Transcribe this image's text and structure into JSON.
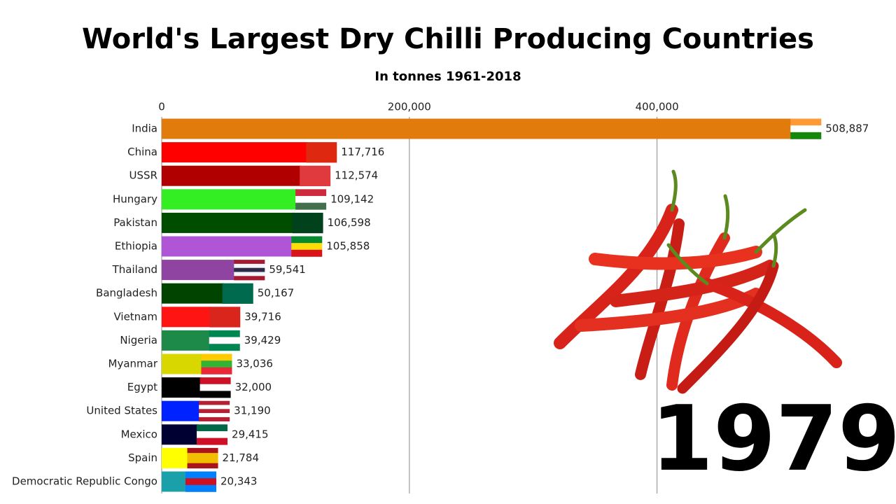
{
  "chart_data": {
    "type": "bar",
    "orientation": "horizontal",
    "title": "World's Largest Dry Chilli Producing Countries",
    "subtitle": "In tonnes 1961-2018",
    "year": "1979",
    "categories": [
      "India",
      "China",
      "USSR",
      "Hungary",
      "Pakistan",
      "Ethiopia",
      "Thailand",
      "Bangladesh",
      "Vietnam",
      "Nigeria",
      "Myanmar",
      "Egypt",
      "United States",
      "Mexico",
      "Spain",
      "Democratic Republic Congo"
    ],
    "values": [
      508887,
      117716,
      112574,
      109142,
      106598,
      105858,
      59541,
      50167,
      39716,
      39429,
      33036,
      32000,
      31190,
      29415,
      21784,
      20343
    ],
    "value_labels": [
      "508,887",
      "117,716",
      "112,574",
      "109,142",
      "106,598",
      "105,858",
      "59,541",
      "50,167",
      "39,716",
      "39,429",
      "33,036",
      "32,000",
      "31,190",
      "29,415",
      "21,784",
      "20,343"
    ],
    "colors": [
      "#e07b0c",
      "#ff0000",
      "#b00000",
      "#33ee22",
      "#004d00",
      "#b055d5",
      "#8e44a0",
      "#004400",
      "#ff1414",
      "#1e8a4a",
      "#d8d800",
      "#000000",
      "#0022ff",
      "#000033",
      "#ffff00",
      "#1aa0a8"
    ],
    "flags": [
      [
        "#ff9933",
        "#ffffff",
        "#138808"
      ],
      [
        "#de2910"
      ],
      [
        "#e03a3e"
      ],
      [
        "#cd2a3e",
        "#ffffff",
        "#436f4d"
      ],
      [
        "#01411c"
      ],
      [
        "#078930",
        "#fcdd09",
        "#da121a"
      ],
      [
        "#a51931",
        "#f4f5f8",
        "#2d2a4a",
        "#f4f5f8",
        "#a51931"
      ],
      [
        "#006a4e"
      ],
      [
        "#da251d"
      ],
      [
        "#008751",
        "#ffffff",
        "#008751"
      ],
      [
        "#fecb00",
        "#34b233",
        "#ea2839"
      ],
      [
        "#ce1126",
        "#ffffff",
        "#000000"
      ],
      [
        "#b22234",
        "#ffffff",
        "#b22234",
        "#ffffff",
        "#b22234"
      ],
      [
        "#006847",
        "#ffffff",
        "#ce1126"
      ],
      [
        "#aa151b",
        "#f1bf00",
        "#f1bf00",
        "#aa151b"
      ],
      [
        "#007fff",
        "#ce1021",
        "#007fff"
      ]
    ],
    "xlim": [
      0,
      550000
    ],
    "xticks": [
      0,
      {
        "value": 200000,
        "label": "200,000"
      },
      {
        "value": 400000,
        "label": "400,000"
      }
    ],
    "grid": true
  }
}
